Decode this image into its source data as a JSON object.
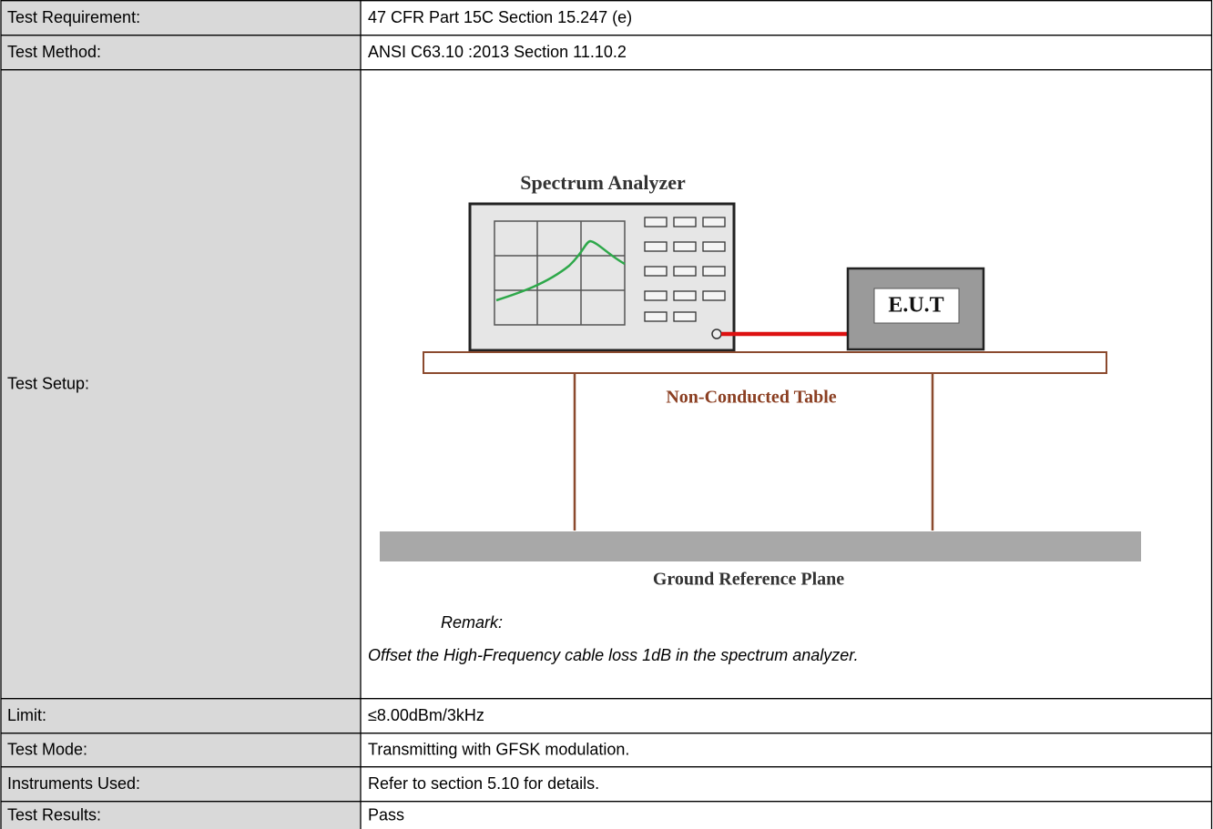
{
  "table": {
    "rows": [
      {
        "label": "Test Requirement:",
        "value": "47 CFR Part 15C Section 15.247 (e)"
      },
      {
        "label": "Test Method:",
        "value": "ANSI C63.10 :2013 Section 11.10.2"
      },
      {
        "label": "Test Setup:"
      },
      {
        "label": "Limit:",
        "value": "≤8.00dBm/3kHz"
      },
      {
        "label": "Test Mode:",
        "value": "Transmitting with GFSK modulation."
      },
      {
        "label": "Instruments Used:",
        "value": "Refer to section 5.10 for details."
      },
      {
        "label": "Test Results:",
        "value": "Pass"
      }
    ]
  },
  "setup": {
    "analyzer": "Spectrum Analyzer",
    "eut": "E.U.T",
    "table": "Non-Conducted Table",
    "ground": "Ground Reference Plane",
    "remark_title": "Remark:",
    "remark": "Offset the High-Frequency cable loss 1dB in the spectrum analyzer."
  }
}
